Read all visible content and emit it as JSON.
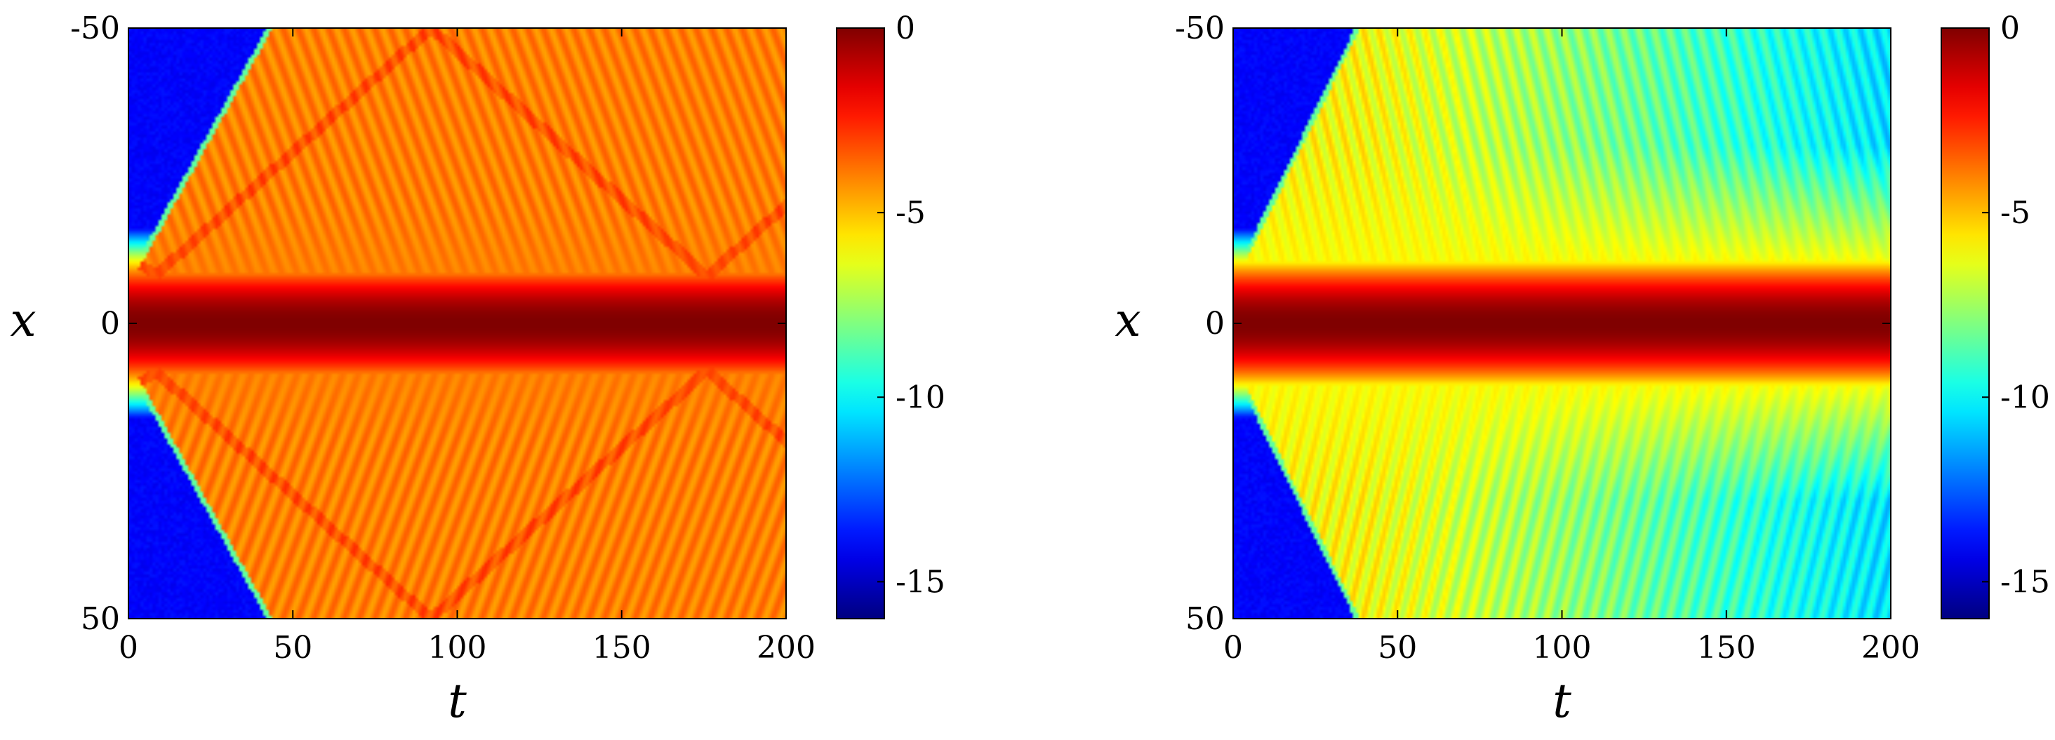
{
  "chart_data": [
    {
      "type": "heatmap",
      "xlabel": "t",
      "ylabel": "x",
      "xlim": [
        0,
        200
      ],
      "ylim": [
        -50,
        50
      ],
      "xticks": [
        0,
        50,
        100,
        150,
        200
      ],
      "yticks": [
        -50,
        0,
        50
      ],
      "xticklabels": [
        "0",
        "50",
        "100",
        "150",
        "200"
      ],
      "yticklabels": [
        "-50",
        "0",
        "50"
      ],
      "y_direction": "reversed",
      "colormap": "jet",
      "clim": [
        -16,
        0
      ],
      "colorbar_ticks": [
        0,
        -5,
        -10,
        -15
      ],
      "colorbar_ticklabels": [
        "0",
        "-5",
        "-10",
        "-15"
      ],
      "background_level": -14,
      "center_profile_halfwidth": 16,
      "plateau_level": -4,
      "front_arrival_t_at_edge": 50,
      "reflections": true
    },
    {
      "type": "heatmap",
      "xlabel": "t",
      "ylabel": "x",
      "xlim": [
        0,
        200
      ],
      "ylim": [
        -50,
        50
      ],
      "xticks": [
        0,
        50,
        100,
        150,
        200
      ],
      "yticks": [
        -50,
        0,
        50
      ],
      "xticklabels": [
        "0",
        "50",
        "100",
        "150",
        "200"
      ],
      "yticklabels": [
        "-50",
        "0",
        "50"
      ],
      "y_direction": "reversed",
      "colormap": "jet",
      "clim": [
        -16,
        0
      ],
      "colorbar_ticks": [
        0,
        -5,
        -10,
        -15
      ],
      "colorbar_ticklabels": [
        "0",
        "-5",
        "-10",
        "-15"
      ],
      "background_level": -14,
      "center_profile_halfwidth": 16,
      "plateau_level": -6,
      "front_arrival_t_at_edge": 45,
      "reflections": false
    }
  ]
}
